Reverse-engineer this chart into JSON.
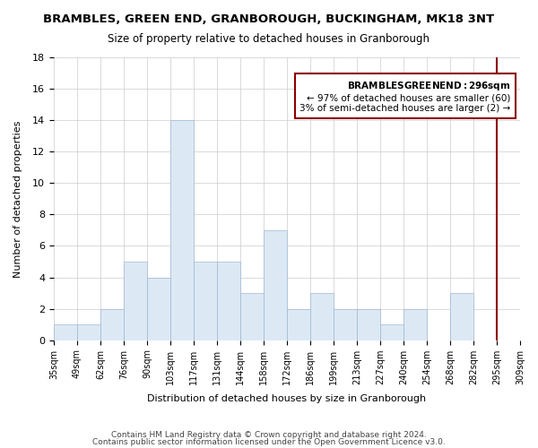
{
  "title": "BRAMBLES, GREEN END, GRANBOROUGH, BUCKINGHAM, MK18 3NT",
  "subtitle": "Size of property relative to detached houses in Granborough",
  "xlabel": "Distribution of detached houses by size in Granborough",
  "ylabel": "Number of detached properties",
  "footer_line1": "Contains HM Land Registry data © Crown copyright and database right 2024.",
  "footer_line2": "Contains public sector information licensed under the Open Government Licence v3.0.",
  "bin_labels": [
    "35sqm",
    "49sqm",
    "62sqm",
    "76sqm",
    "90sqm",
    "103sqm",
    "117sqm",
    "131sqm",
    "144sqm",
    "158sqm",
    "172sqm",
    "186sqm",
    "199sqm",
    "213sqm",
    "227sqm",
    "240sqm",
    "254sqm",
    "268sqm",
    "282sqm",
    "295sqm",
    "309sqm"
  ],
  "bar_heights": [
    1,
    1,
    2,
    5,
    4,
    14,
    5,
    5,
    3,
    7,
    2,
    3,
    2,
    2,
    1,
    2,
    0,
    3,
    0,
    0,
    0
  ],
  "bar_counts": [
    1,
    1,
    2,
    5,
    4,
    14,
    5,
    5,
    3,
    7,
    2,
    3,
    2,
    2,
    1,
    2,
    0,
    3,
    0,
    0,
    0
  ],
  "highlight_bin_index": 19,
  "highlight_value": 296,
  "highlight_bar_heights": [
    3
  ],
  "highlight_color": "#dce9f5",
  "normal_color": "#dce9f5",
  "highlight_line_color": "#8b0000",
  "ylim": [
    0,
    18
  ],
  "yticks": [
    0,
    2,
    4,
    6,
    8,
    10,
    12,
    14,
    16,
    18
  ],
  "annotation_title": "BRAMBLES GREEN END: 296sqm",
  "annotation_line1": "← 97% of detached houses are smaller (60)",
  "annotation_line2": "3% of semi-detached houses are larger (2) →",
  "annotation_box_color": "#ffffff",
  "annotation_box_edge_color": "#8b0000",
  "grid_color": "#cccccc",
  "background_color": "#ffffff"
}
